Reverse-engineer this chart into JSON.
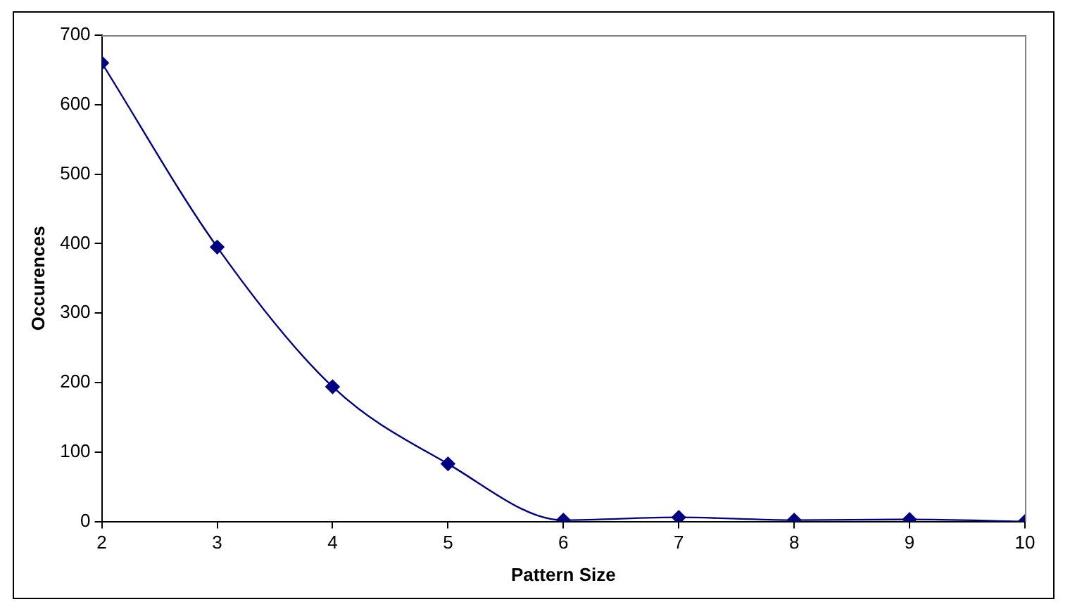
{
  "chart_data": {
    "type": "line",
    "xlabel": "Pattern Size",
    "ylabel": "Occurences",
    "x": [
      2,
      3,
      4,
      5,
      6,
      7,
      8,
      9,
      10
    ],
    "series": [
      {
        "color": "#000080",
        "values": [
          660,
          395,
          194,
          83,
          2,
          6,
          2,
          3,
          0
        ]
      }
    ],
    "xlim": [
      2,
      10
    ],
    "xticks": [
      2,
      3,
      4,
      5,
      6,
      7,
      8,
      9,
      10
    ],
    "ylim": [
      0,
      700
    ],
    "yticks": [
      0,
      100,
      200,
      300,
      400,
      500,
      600,
      700
    ],
    "grid": false,
    "legend": false,
    "marker": "diamond",
    "line_style": "solid"
  }
}
